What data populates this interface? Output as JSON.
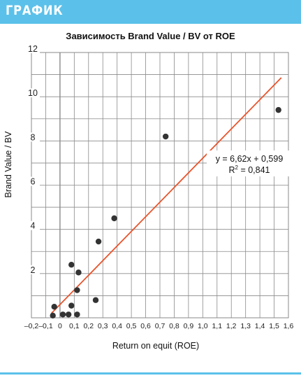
{
  "header": {
    "label": "ГРАФИК"
  },
  "colors": {
    "accent": "#5bc1ea",
    "trendline": "#e8532b",
    "points": "#333333",
    "grid": "#8a8a8a"
  },
  "chart_data": {
    "type": "scatter",
    "title": "Зависимость Brand Value / BV от ROE",
    "xlabel": "Return on equit (ROE)",
    "ylabel": "Brand Value / BV",
    "xlim": [
      -0.2,
      1.6
    ],
    "ylim": [
      0,
      12
    ],
    "grid": true,
    "x_ticks": [
      "–0,2",
      "–0,1",
      "0",
      "0,1",
      "0,2",
      "0,3",
      "0,4",
      "0,5",
      "0,6",
      "0,7",
      "0,8",
      "0,9",
      "1,0",
      "1,1",
      "1,2",
      "1,3",
      "1,4",
      "1,5",
      "1,6"
    ],
    "y_ticks": [
      "2",
      "4",
      "6",
      "8",
      "10",
      "12"
    ],
    "points": [
      {
        "x": -0.05,
        "y": 0.1
      },
      {
        "x": -0.04,
        "y": 0.5
      },
      {
        "x": 0.02,
        "y": 0.15
      },
      {
        "x": 0.06,
        "y": 0.15
      },
      {
        "x": 0.08,
        "y": 0.55
      },
      {
        "x": 0.08,
        "y": 2.4
      },
      {
        "x": 0.12,
        "y": 0.15
      },
      {
        "x": 0.12,
        "y": 1.25
      },
      {
        "x": 0.13,
        "y": 2.05
      },
      {
        "x": 0.25,
        "y": 0.8
      },
      {
        "x": 0.27,
        "y": 3.45
      },
      {
        "x": 0.38,
        "y": 4.5
      },
      {
        "x": 0.74,
        "y": 8.2
      },
      {
        "x": 1.53,
        "y": 9.4
      }
    ],
    "trendline": {
      "slope": 6.62,
      "intercept": 0.599,
      "x_range": [
        -0.06,
        1.55
      ]
    },
    "annotation": {
      "equation": "y = 6,62x + 0,599",
      "r2_label": "R",
      "r2_sup": "2",
      "r2_value": " = 0,841"
    }
  }
}
